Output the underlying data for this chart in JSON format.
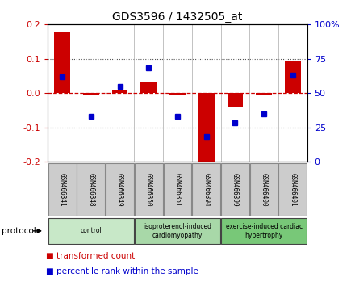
{
  "title": "GDS3596 / 1432505_at",
  "samples": [
    "GSM466341",
    "GSM466348",
    "GSM466349",
    "GSM466350",
    "GSM466351",
    "GSM466394",
    "GSM466399",
    "GSM466400",
    "GSM466401"
  ],
  "transformed_count": [
    0.18,
    -0.005,
    0.008,
    0.033,
    -0.005,
    -0.205,
    -0.04,
    -0.008,
    0.093
  ],
  "percentile_rank": [
    62,
    33,
    55,
    68,
    33,
    18,
    28,
    35,
    63
  ],
  "ylim_left": [
    -0.2,
    0.2
  ],
  "ylim_right": [
    0,
    100
  ],
  "yticks_left": [
    -0.2,
    -0.1,
    0.0,
    0.1,
    0.2
  ],
  "yticks_right": [
    0,
    25,
    50,
    75,
    100
  ],
  "yticklabels_right": [
    "0",
    "25",
    "50",
    "75",
    "100%"
  ],
  "bar_color": "#cc0000",
  "dot_color": "#0000cc",
  "zero_line_color": "#cc0000",
  "dotted_line_color": "#555555",
  "groups": [
    {
      "label": "control",
      "start": 0,
      "end": 3,
      "color": "#c8e8c8"
    },
    {
      "label": "isoproterenol-induced\ncardiomyopathy",
      "start": 3,
      "end": 6,
      "color": "#a8d8a8"
    },
    {
      "label": "exercise-induced cardiac\nhypertrophy",
      "start": 6,
      "end": 9,
      "color": "#78c878"
    }
  ],
  "protocol_label": "protocol",
  "legend_items": [
    {
      "label": "transformed count",
      "color": "#cc0000"
    },
    {
      "label": "percentile rank within the sample",
      "color": "#0000cc"
    }
  ],
  "sample_box_color": "#cccccc",
  "sample_box_edge": "#888888",
  "figsize": [
    4.4,
    3.54
  ],
  "dpi": 100
}
